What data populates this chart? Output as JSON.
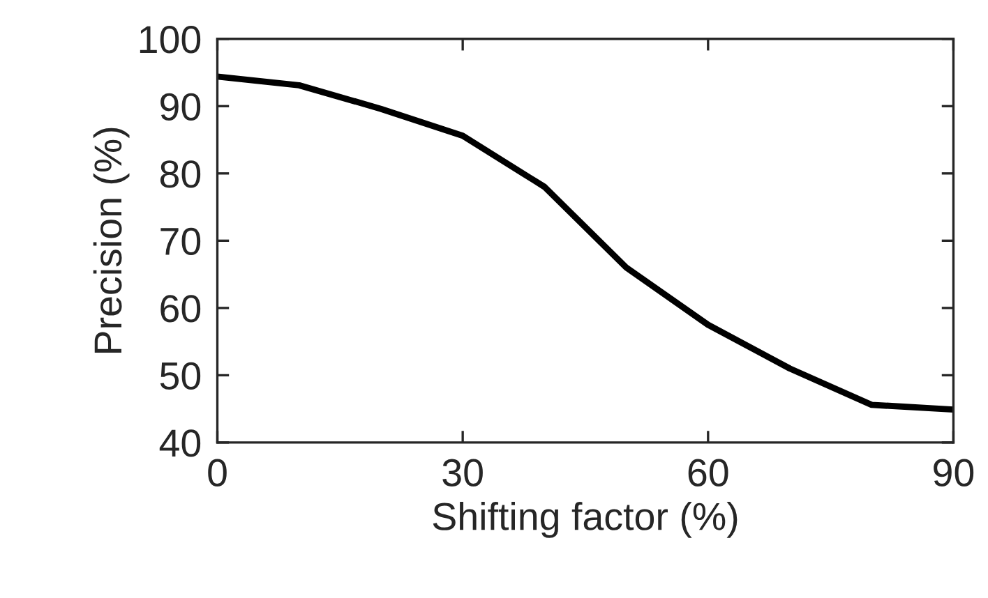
{
  "chart_data": {
    "type": "line",
    "xlabel": "Shifting factor (%)",
    "ylabel": "Precision (%)",
    "x": [
      0,
      10,
      20,
      30,
      40,
      50,
      60,
      70,
      80,
      90
    ],
    "series": [
      {
        "color": "#000000",
        "values": [
          94.4,
          93.1,
          89.6,
          85.6,
          78,
          66,
          57.5,
          51,
          45.6,
          44.9
        ]
      }
    ],
    "xlim": [
      0,
      90
    ],
    "xticks": [
      0,
      30,
      60,
      90
    ],
    "ylim": [
      40,
      100
    ],
    "yticks": [
      40,
      50,
      60,
      70,
      80,
      90,
      100
    ],
    "grid": false,
    "legend": false,
    "marker": "none",
    "line_style": "solid"
  }
}
